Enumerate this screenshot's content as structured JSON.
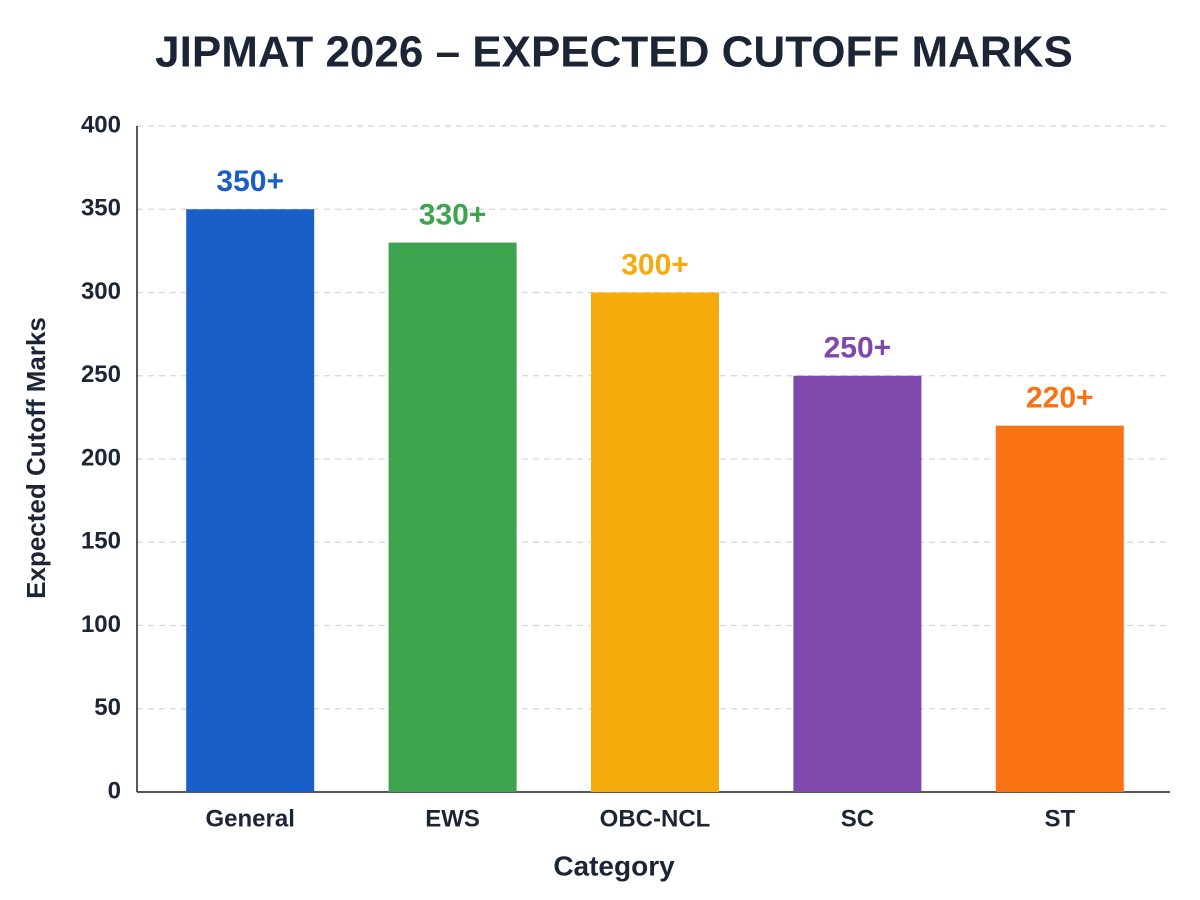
{
  "chart_data": {
    "type": "bar",
    "title": "JIPMAT 2026 – EXPECTED CUTOFF MARKS",
    "x_label": "Category",
    "y_label": "Expected Cutoff Marks",
    "categories": [
      "General",
      "EWS",
      "OBC-NCL",
      "SC",
      "ST"
    ],
    "values": [
      350,
      330,
      300,
      250,
      220
    ],
    "value_labels": [
      "350+",
      "330+",
      "300+",
      "250+",
      "220+"
    ],
    "colors": [
      "#1a5fc9",
      "#3ea34f",
      "#f6ab0c",
      "#8047ad",
      "#f97213"
    ],
    "ylim": [
      0,
      400
    ],
    "yticks": [
      0,
      50,
      100,
      150,
      200,
      250,
      300,
      350,
      400
    ],
    "grid": true
  }
}
